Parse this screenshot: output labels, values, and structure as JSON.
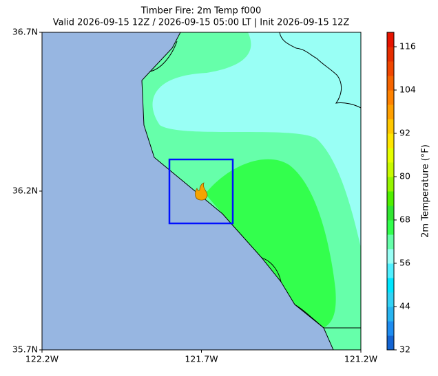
{
  "chart_data": {
    "type": "map",
    "title": "Timber Fire: 2m Temp f000",
    "subtitle": "Valid 2026-09-15 12Z / 2026-09-15 05:00 LT | Init 2026-09-15 12Z",
    "xlim": [
      -122.2,
      -121.2
    ],
    "ylim": [
      35.7,
      36.7
    ],
    "xticks": [
      {
        "value": -122.2,
        "label": "122.2W"
      },
      {
        "value": -121.7,
        "label": "121.7W"
      },
      {
        "value": -121.2,
        "label": "121.2W"
      }
    ],
    "yticks": [
      {
        "value": 35.7,
        "label": "35.7N"
      },
      {
        "value": 36.2,
        "label": "36.2N"
      },
      {
        "value": 36.7,
        "label": "36.7N"
      }
    ],
    "colorbar": {
      "label": "2m Temperature (°F)",
      "clim": [
        32,
        120
      ],
      "ticks": [
        32,
        44,
        56,
        68,
        80,
        92,
        104,
        116
      ],
      "colors": [
        "#1464d2",
        "#1e8cf0",
        "#28b4f0",
        "#32d2f5",
        "#00e6ff",
        "#50f0ff",
        "#99fff5",
        "#66ffaa",
        "#33ff4d",
        "#32e632",
        "#50f000",
        "#96f500",
        "#c8fa00",
        "#e6ff00",
        "#ffe600",
        "#ffc800",
        "#ffa000",
        "#ff8200",
        "#f56400",
        "#f04600",
        "#e62d00",
        "#e61400"
      ]
    }
  }
}
